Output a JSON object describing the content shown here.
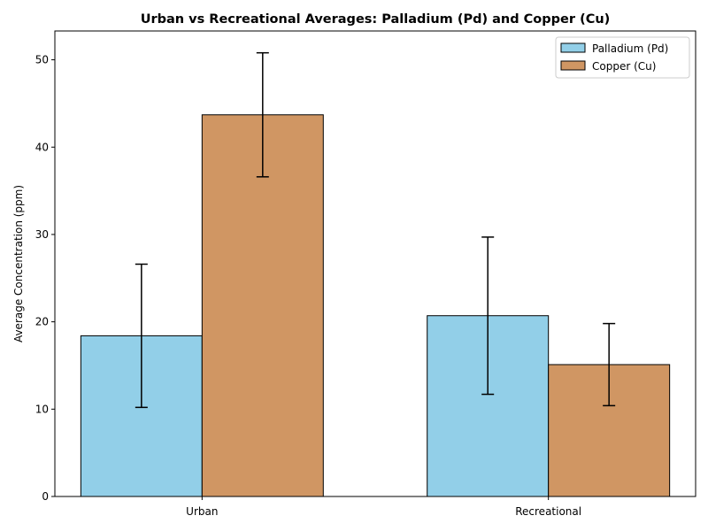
{
  "chart_data": {
    "type": "bar",
    "title": "Urban vs Recreational Averages: Palladium (Pd) and Copper (Cu)",
    "xlabel": "",
    "ylabel": "Average Concentration (ppm)",
    "categories": [
      "Urban",
      "Recreational"
    ],
    "ylim": [
      0,
      53.3
    ],
    "yticks": [
      0,
      10,
      20,
      30,
      40,
      50
    ],
    "series": [
      {
        "name": "Palladium (Pd)",
        "color": "#92cfe8",
        "values": [
          18.4,
          20.7
        ],
        "errors": [
          8.2,
          9.0
        ]
      },
      {
        "name": "Copper (Cu)",
        "color": "#d09663",
        "values": [
          43.7,
          15.1
        ],
        "errors": [
          7.1,
          4.7
        ]
      }
    ],
    "error_bars": true,
    "grid": false,
    "legend_position": "top-right"
  }
}
